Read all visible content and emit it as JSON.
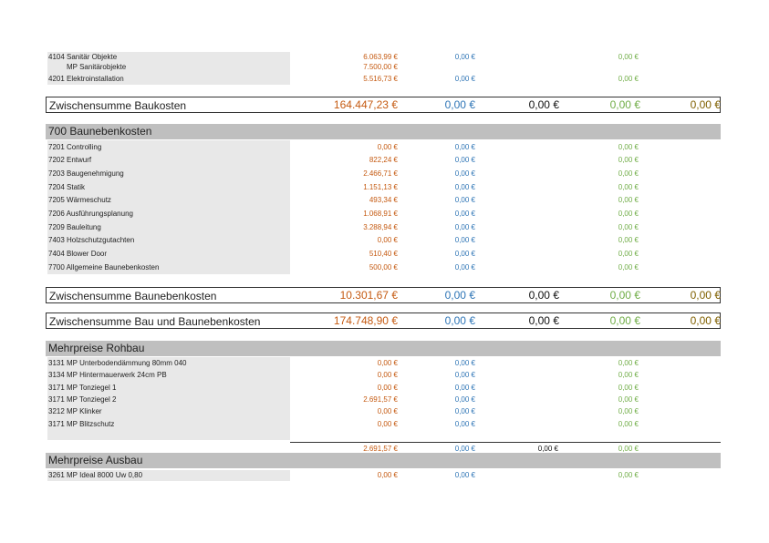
{
  "top_items": [
    {
      "label": "4104 Sanitär Objekte",
      "v1": "6.063,99 €",
      "v2": "0,00 €",
      "v4": "0,00 €"
    },
    {
      "label": "MP Sanitärobjekte",
      "v1": "7.500,00 €"
    },
    {
      "label": "4201 Elektroinstallation",
      "v1": "5.516,73 €",
      "v2": "0,00 €",
      "v4": "0,00 €"
    }
  ],
  "subtotal_baukosten": {
    "label": "Zwischensumme Baukosten",
    "v1": "164.447,23 €",
    "v2": "0,00 €",
    "v3": "0,00 €",
    "v4": "0,00 €",
    "v5": "0,00 €"
  },
  "section_700": {
    "title": "700 Baunebenkosten",
    "items": [
      {
        "label": "7201 Controlling",
        "v1": "0,00 €",
        "v2": "0,00 €",
        "v4": "0,00 €"
      },
      {
        "label": "7202 Entwurf",
        "v1": "822,24 €",
        "v2": "0,00 €",
        "v4": "0,00 €"
      },
      {
        "label": "7203 Baugenehmigung",
        "v1": "2.466,71 €",
        "v2": "0,00 €",
        "v4": "0,00 €"
      },
      {
        "label": "7204 Statik",
        "v1": "1.151,13 €",
        "v2": "0,00 €",
        "v4": "0,00 €"
      },
      {
        "label": "7205 Wärmeschutz",
        "v1": "493,34 €",
        "v2": "0,00 €",
        "v4": "0,00 €"
      },
      {
        "label": "7206 Ausführungsplanung",
        "v1": "1.068,91 €",
        "v2": "0,00 €",
        "v4": "0,00 €"
      },
      {
        "label": "7209 Bauleitung",
        "v1": "3.288,94 €",
        "v2": "0,00 €",
        "v4": "0,00 €"
      },
      {
        "label": "7403 Holzschutzgutachten",
        "v1": "0,00 €",
        "v2": "0,00 €",
        "v4": "0,00 €"
      },
      {
        "label": "7404 Blower Door",
        "v1": "510,40 €",
        "v2": "0,00 €",
        "v4": "0,00 €"
      },
      {
        "label": "7700 Allgemeine Baunebenkosten",
        "v1": "500,00 €",
        "v2": "0,00 €",
        "v4": "0,00 €"
      }
    ]
  },
  "subtotal_baunebenkosten": {
    "label": "Zwischensumme Baunebenkosten",
    "v1": "10.301,67 €",
    "v2": "0,00 €",
    "v3": "0,00 €",
    "v4": "0,00 €",
    "v5": "0,00 €"
  },
  "subtotal_bau_und_neben": {
    "label": "Zwischensumme Bau und Baunebenkosten",
    "v1": "174.748,90 €",
    "v2": "0,00 €",
    "v3": "0,00 €",
    "v4": "0,00 €",
    "v5": "0,00 €"
  },
  "section_rohbau": {
    "title": "Mehrpreise Rohbau",
    "items": [
      {
        "label": "3131 MP Unterbodendämmung 80mm 040",
        "v1": "0,00 €",
        "v2": "0,00 €",
        "v4": "0,00 €"
      },
      {
        "label": "3134 MP Hintermauerwerk 24cm PB",
        "v1": "0,00 €",
        "v2": "0,00 €",
        "v4": "0,00 €"
      },
      {
        "label": "3171 MP Tonziegel 1",
        "v1": "0,00 €",
        "v2": "0,00 €",
        "v4": "0,00 €"
      },
      {
        "label": "3171 MP Tonziegel 2",
        "v1": "2.691,57 €",
        "v2": "0,00 €",
        "v4": "0,00 €"
      },
      {
        "label": "3212 MP Klinker",
        "v1": "0,00 €",
        "v2": "0,00 €",
        "v4": "0,00 €"
      },
      {
        "label": "3171 MP Blitzschutz",
        "v1": "0,00 €",
        "v2": "0,00 €",
        "v4": "0,00 €"
      }
    ],
    "total": {
      "v1": "2.691,57 €",
      "v2": "0,00 €",
      "v3": "0,00 €",
      "v4": "0,00 €"
    }
  },
  "section_ausbau": {
    "title": "Mehrpreise Ausbau",
    "items": [
      {
        "label": "3261 MP Ideal 8000 Uw 0,80",
        "v1": "0,00 €",
        "v2": "0,00 €",
        "v4": "0,00 €"
      }
    ]
  },
  "colors": {
    "orange": "#c55a11",
    "blue": "#2e75b6",
    "green": "#70ad47",
    "olive": "#806000",
    "header_gray": "#bfbfbf",
    "label_gray": "#e8e8e8"
  }
}
